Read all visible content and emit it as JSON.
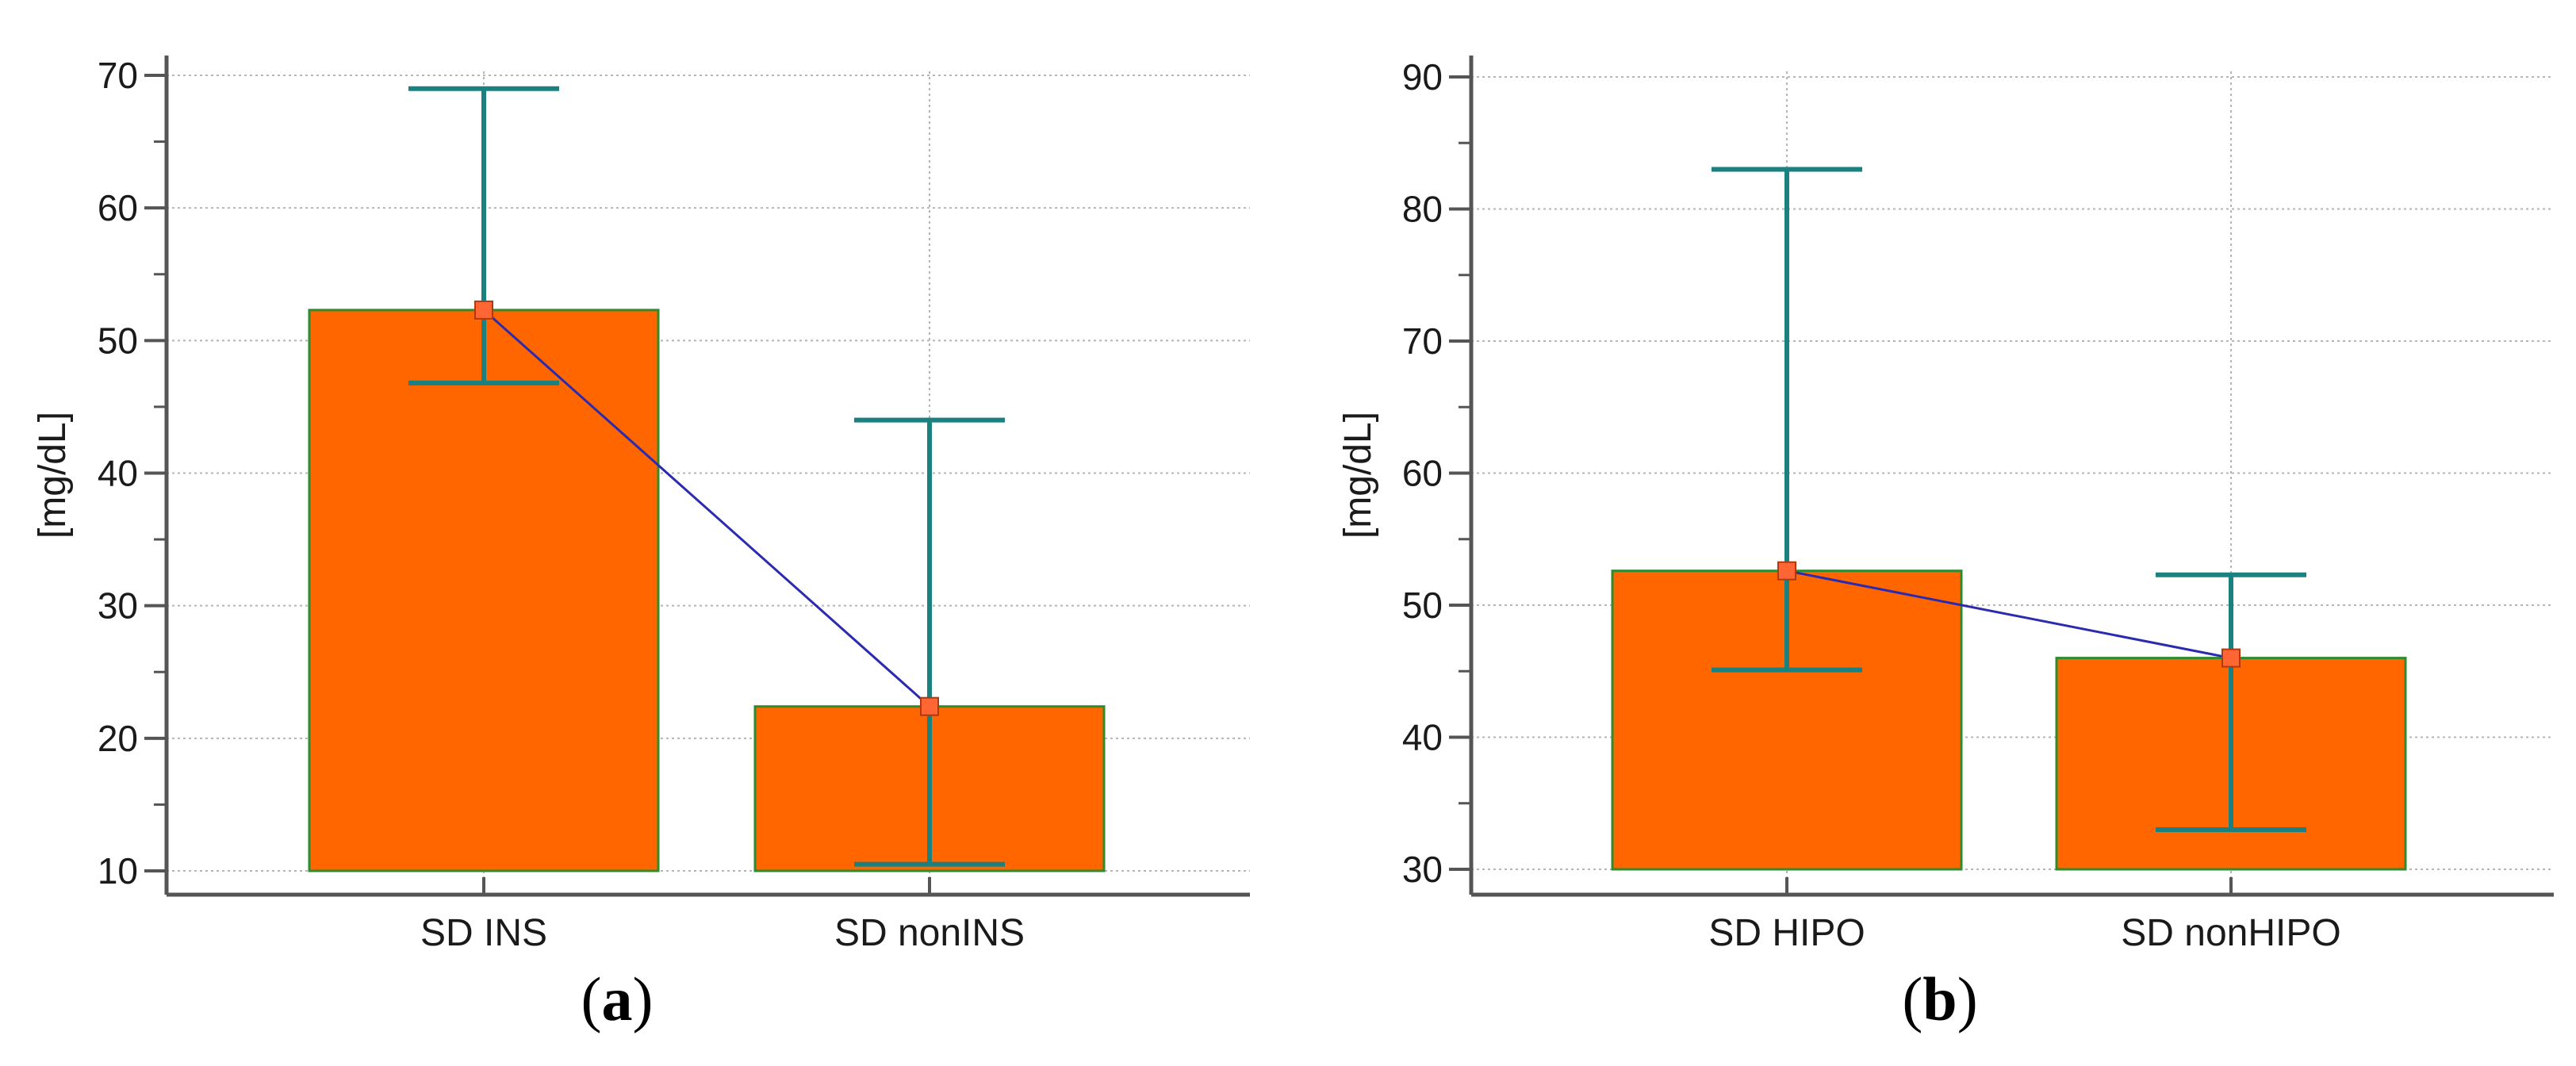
{
  "figure": {
    "panels": [
      {
        "label": "a",
        "label_text": "(a)"
      },
      {
        "label": "b",
        "label_text": "(b)"
      }
    ]
  },
  "chart_data": [
    {
      "type": "bar",
      "title": "",
      "xlabel": "",
      "ylabel": "[mg/dL]",
      "ylim": [
        10,
        70
      ],
      "yticks": [
        10,
        20,
        30,
        40,
        50,
        60,
        70
      ],
      "categories": [
        "SD INS",
        "SD nonINS"
      ],
      "values": [
        52.3,
        22.4
      ],
      "error_upper": [
        69,
        44
      ],
      "error_lower": [
        46.8,
        10.5
      ],
      "mean_line": true,
      "grid": true,
      "bar_color": "#ff6600",
      "bar_edge_color": "#2e8b2e",
      "error_color": "#1a8080",
      "line_color": "#2b2bb0",
      "marker_color": "#ff6633"
    },
    {
      "type": "bar",
      "title": "",
      "xlabel": "",
      "ylabel": "[mg/dL]",
      "ylim": [
        30,
        90
      ],
      "yticks": [
        30,
        40,
        50,
        60,
        70,
        80,
        90
      ],
      "categories": [
        "SD HIPO",
        "SD nonHIPO"
      ],
      "values": [
        52.6,
        46
      ],
      "error_upper": [
        83,
        52.3
      ],
      "error_lower": [
        45.1,
        33
      ],
      "mean_line": true,
      "grid": true,
      "bar_color": "#ff6600",
      "bar_edge_color": "#2e8b2e",
      "error_color": "#1a8080",
      "line_color": "#2b2bb0",
      "marker_color": "#ff6633"
    }
  ]
}
